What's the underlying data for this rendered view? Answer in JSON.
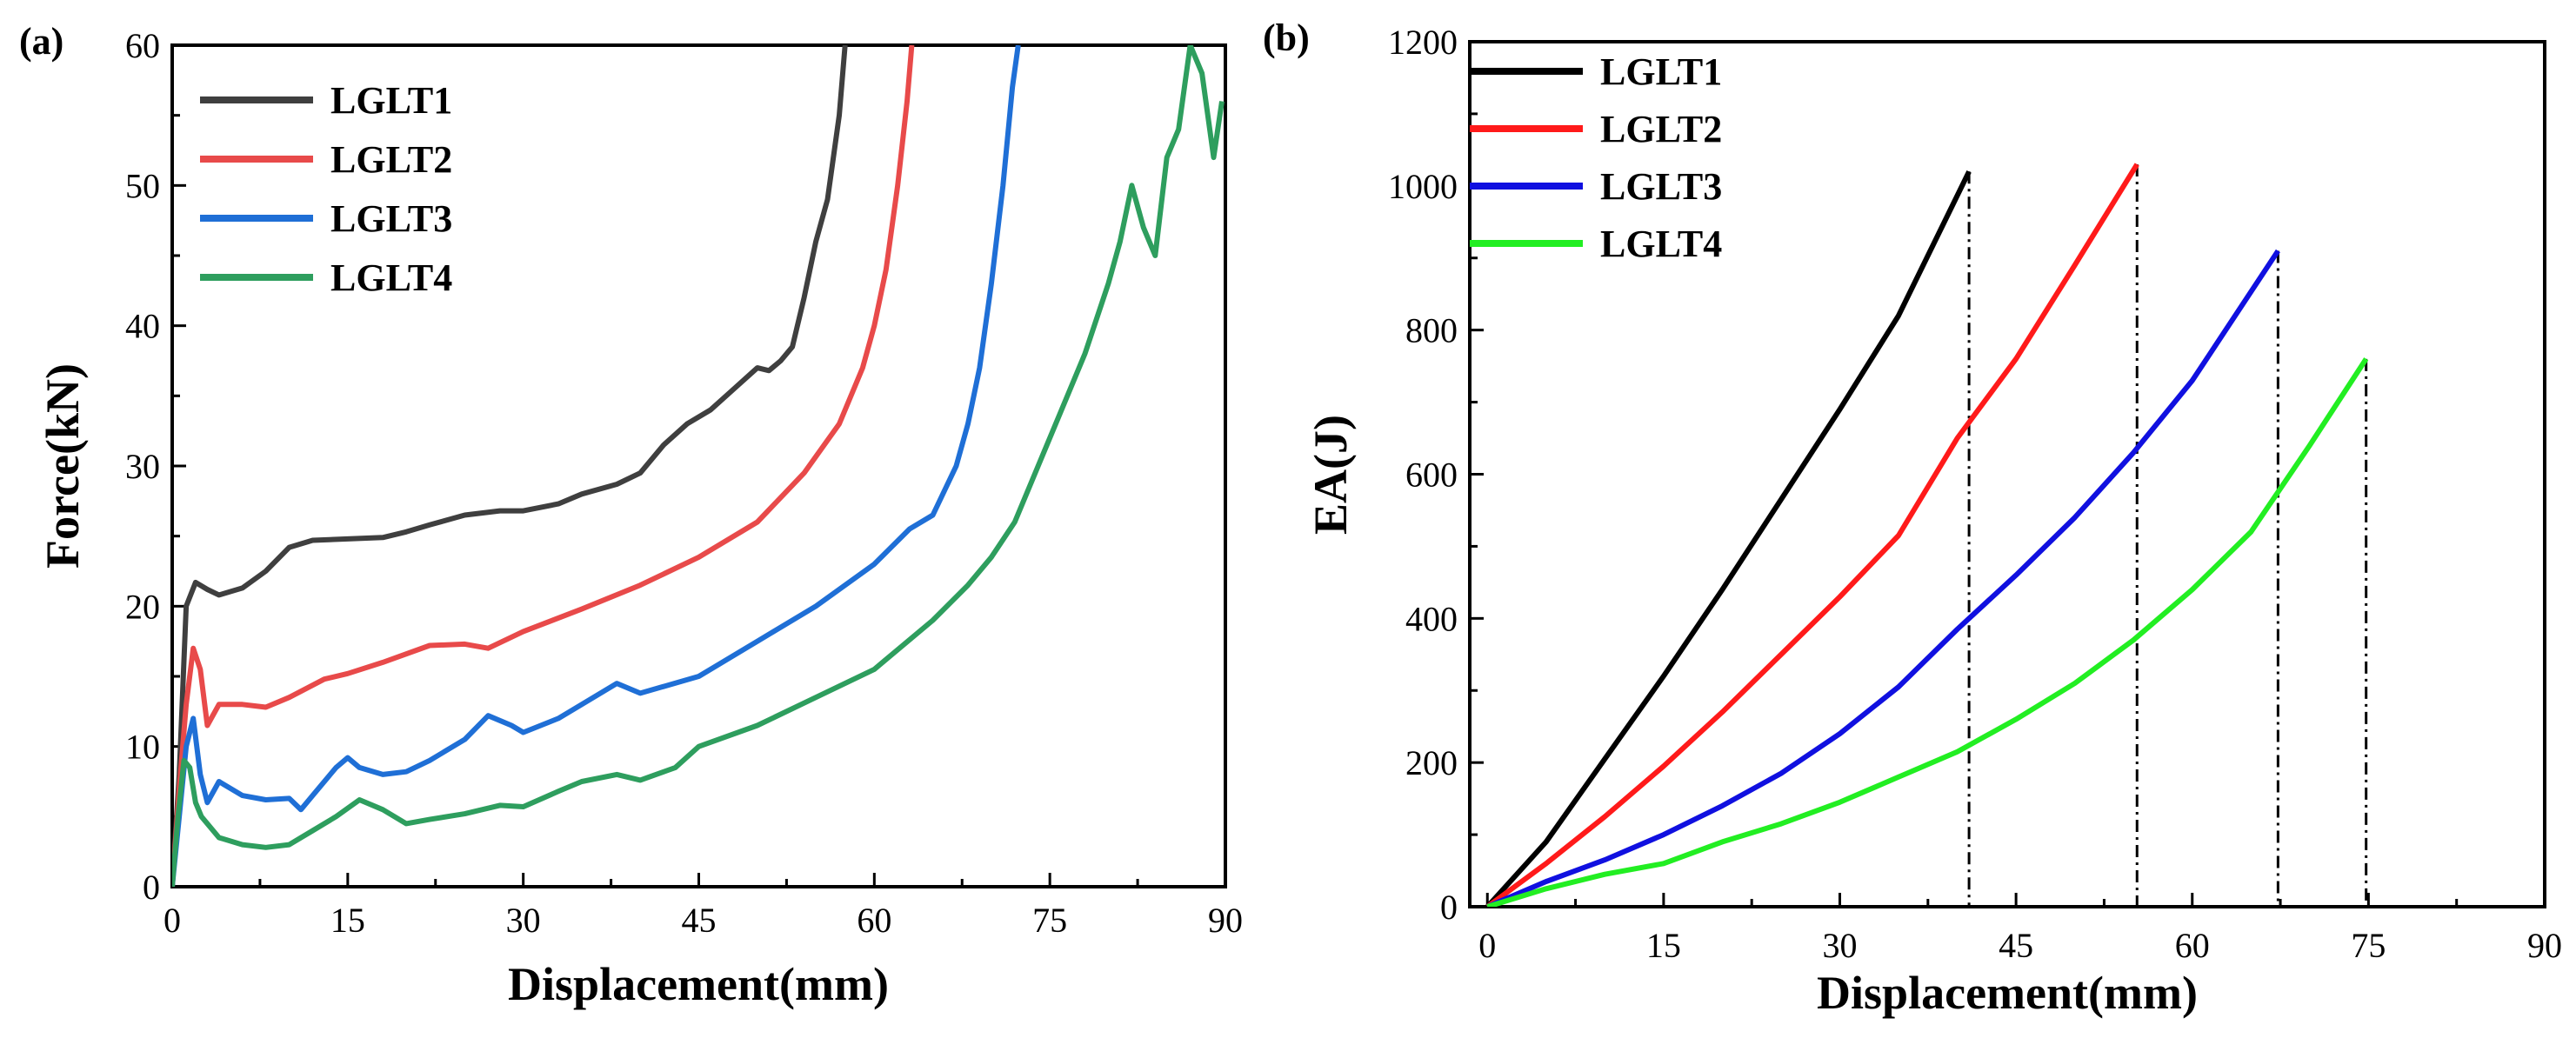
{
  "chart_data": [
    {
      "panel": "(a)",
      "type": "line",
      "xlabel": "Displacement(mm)",
      "ylabel": "Force(kN)",
      "xlim": [
        0,
        90
      ],
      "ylim": [
        0,
        60
      ],
      "xticks": [
        0,
        15,
        30,
        45,
        60,
        75,
        90
      ],
      "yticks": [
        0,
        10,
        20,
        30,
        40,
        50,
        60
      ],
      "xtick_labels": [
        "0",
        "15",
        "30",
        "45",
        "60",
        "75",
        "90"
      ],
      "ytick_labels": [
        "0",
        "10",
        "20",
        "30",
        "40",
        "50",
        "60"
      ],
      "legend_position": "top-left",
      "series": [
        {
          "name": "LGLT1",
          "color": "#3f3f3f",
          "x": [
            0,
            0.6,
            1.2,
            2,
            3,
            4,
            6,
            8,
            10,
            12,
            15,
            18,
            20,
            22,
            25,
            28,
            30,
            33,
            35,
            38,
            40,
            42,
            44,
            46,
            48,
            50,
            51,
            52,
            53,
            54,
            55,
            56,
            57,
            57.5
          ],
          "y": [
            0,
            8,
            20,
            21.7,
            21.2,
            20.8,
            21.3,
            22.5,
            24.2,
            24.7,
            24.8,
            24.9,
            25.3,
            25.8,
            26.5,
            26.8,
            26.8,
            27.3,
            28,
            28.7,
            29.5,
            31.5,
            33,
            34,
            35.5,
            37,
            36.8,
            37.5,
            38.5,
            42,
            46,
            49,
            55,
            60
          ]
        },
        {
          "name": "LGLT2",
          "color": "#e84a4a",
          "x": [
            0,
            0.6,
            1.2,
            1.8,
            2.4,
            3,
            4,
            6,
            8,
            10,
            13,
            15,
            18,
            22,
            25,
            27,
            30,
            35,
            40,
            45,
            50,
            54,
            57,
            59,
            60,
            61,
            62,
            62.8,
            63.2
          ],
          "y": [
            0,
            7,
            13,
            17,
            15.5,
            11.5,
            13,
            13,
            12.8,
            13.5,
            14.8,
            15.2,
            16,
            17.2,
            17.3,
            17,
            18.2,
            19.8,
            21.5,
            23.5,
            26,
            29.5,
            33,
            37,
            40,
            44,
            50,
            56,
            60
          ]
        },
        {
          "name": "LGLT3",
          "color": "#1f6fd6",
          "x": [
            0,
            0.6,
            1.2,
            1.8,
            2.4,
            3,
            4,
            6,
            8,
            10,
            11,
            12,
            14,
            15,
            16,
            18,
            20,
            22,
            25,
            27,
            29,
            30,
            33,
            35,
            38,
            40,
            45,
            50,
            55,
            60,
            63,
            65,
            67,
            68,
            69,
            70,
            71,
            71.8,
            72.3
          ],
          "y": [
            0,
            5,
            10,
            12,
            8,
            6,
            7.5,
            6.5,
            6.2,
            6.3,
            5.5,
            6.5,
            8.5,
            9.2,
            8.5,
            8,
            8.2,
            9,
            10.5,
            12.2,
            11.5,
            11,
            12,
            13,
            14.5,
            13.8,
            15,
            17.5,
            20,
            23,
            25.5,
            26.5,
            30,
            33,
            37,
            43,
            50,
            57,
            60
          ]
        },
        {
          "name": "LGLT4",
          "color": "#2e9e5e",
          "x": [
            0,
            0.5,
            1,
            1.5,
            2,
            2.5,
            3,
            4,
            6,
            8,
            10,
            12,
            14,
            16,
            18,
            20,
            22,
            25,
            28,
            30,
            33,
            35,
            38,
            40,
            43,
            45,
            50,
            55,
            60,
            65,
            68,
            70,
            72,
            74,
            76,
            78,
            80,
            81,
            82,
            83,
            84,
            85,
            86,
            87,
            88,
            89,
            89.7
          ],
          "y": [
            0,
            5,
            9,
            8.5,
            6,
            5,
            4.5,
            3.5,
            3,
            2.8,
            3,
            4,
            5,
            6.2,
            5.5,
            4.5,
            4.8,
            5.2,
            5.8,
            5.7,
            6.8,
            7.5,
            8,
            7.6,
            8.5,
            10,
            11.5,
            13.5,
            15.5,
            19,
            21.5,
            23.5,
            26,
            30,
            34,
            38,
            43,
            46,
            50,
            47,
            45,
            52,
            54,
            60,
            58,
            52,
            56
          ]
        }
      ]
    },
    {
      "panel": "(b)",
      "type": "line",
      "xlabel": "Displacement(mm)",
      "ylabel": "EA(J)",
      "xlim": [
        -1.5,
        90
      ],
      "ylim": [
        0,
        1200
      ],
      "xticks": [
        0,
        15,
        30,
        45,
        60,
        75,
        90
      ],
      "yticks": [
        0,
        200,
        400,
        600,
        800,
        1000,
        1200
      ],
      "xtick_labels": [
        "0",
        "15",
        "30",
        "45",
        "60",
        "75",
        "90"
      ],
      "ytick_labels": [
        "0",
        "200",
        "400",
        "600",
        "800",
        "1000",
        "1200"
      ],
      "legend_position": "top-left",
      "series": [
        {
          "name": "LGLT1",
          "color": "#000000",
          "x": [
            0,
            5,
            10,
            15,
            20,
            25,
            30,
            35,
            41
          ],
          "y": [
            0,
            90,
            205,
            320,
            440,
            565,
            690,
            820,
            1020
          ]
        },
        {
          "name": "LGLT2",
          "color": "#ff1a1a",
          "x": [
            0,
            5,
            10,
            15,
            20,
            25,
            30,
            35,
            40,
            45,
            50,
            55.3
          ],
          "y": [
            0,
            60,
            125,
            195,
            270,
            350,
            430,
            515,
            650,
            760,
            890,
            1030
          ]
        },
        {
          "name": "LGLT3",
          "color": "#1010e0",
          "x": [
            0,
            5,
            10,
            15,
            20,
            25,
            30,
            35,
            40,
            45,
            50,
            55,
            60,
            67.3
          ],
          "y": [
            0,
            35,
            65,
            100,
            140,
            185,
            240,
            305,
            385,
            460,
            540,
            630,
            730,
            910
          ]
        },
        {
          "name": "LGLT4",
          "color": "#22ee22",
          "x": [
            0,
            5,
            10,
            15,
            20,
            25,
            30,
            35,
            40,
            45,
            50,
            55,
            60,
            65,
            70,
            74.8
          ],
          "y": [
            0,
            25,
            45,
            60,
            90,
            115,
            145,
            180,
            215,
            260,
            310,
            370,
            440,
            520,
            640,
            760
          ]
        }
      ],
      "annotations": "vertical dash-dot lines at curve end points",
      "drop_lines_x": [
        41,
        55.3,
        67.3,
        74.8
      ]
    }
  ]
}
